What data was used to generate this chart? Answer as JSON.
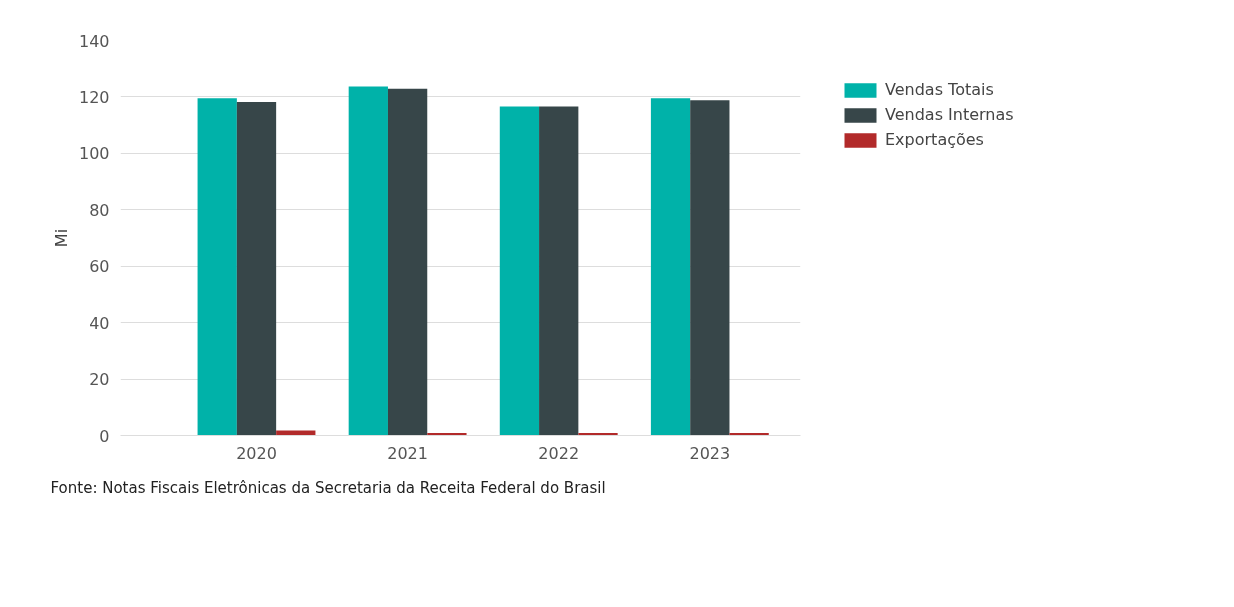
{
  "chart_data": {
    "type": "bar",
    "ylabel": "Mi",
    "categories": [
      "2020",
      "2021",
      "2022",
      "2023"
    ],
    "series": [
      {
        "name": "Vendas Totais",
        "color": "#00b2a9",
        "values": [
          119.5,
          123.7,
          116.6,
          119.5
        ]
      },
      {
        "name": "Vendas Internas",
        "color": "#374649",
        "values": [
          118.2,
          122.9,
          116.6,
          118.8
        ]
      },
      {
        "name": "Exportações",
        "color": "#b22a2a",
        "values": [
          1.8,
          0.9,
          0.9,
          0.9
        ]
      }
    ],
    "ylim": [
      0,
      140
    ],
    "yticks": [
      0,
      20,
      40,
      60,
      80,
      100,
      120,
      140
    ],
    "grid": "y",
    "legend": "top right",
    "annotations": [
      "Fonte: Notas Fiscais Eletrônicas da Secretaria da Receita Federal do Brasil"
    ]
  }
}
